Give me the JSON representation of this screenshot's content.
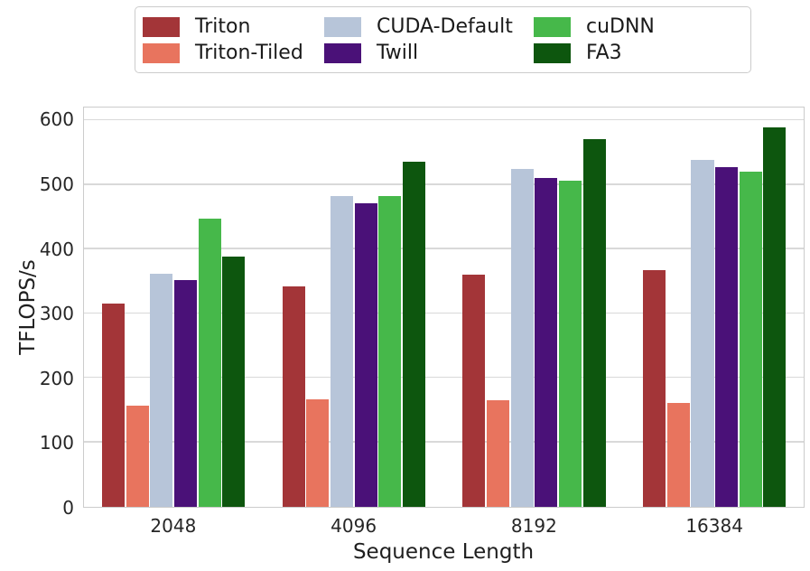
{
  "chart_data": {
    "type": "bar",
    "title": "",
    "xlabel": "Sequence Length",
    "ylabel": "TFLOPS/s",
    "categories": [
      "2048",
      "4096",
      "8192",
      "16384"
    ],
    "series": [
      {
        "name": "Triton",
        "color": "#a33538",
        "values": [
          315,
          342,
          360,
          368
        ]
      },
      {
        "name": "Triton-Tiled",
        "color": "#e8745e",
        "values": [
          157,
          167,
          166,
          162
        ]
      },
      {
        "name": "CUDA-Default",
        "color": "#b7c5d9",
        "values": [
          362,
          482,
          525,
          538
        ]
      },
      {
        "name": "Twill",
        "color": "#4a1178",
        "values": [
          352,
          471,
          511,
          528
        ]
      },
      {
        "name": "cuDNN",
        "color": "#46b84a",
        "values": [
          447,
          483,
          507,
          521
        ]
      },
      {
        "name": "FA3",
        "color": "#0d560e",
        "values": [
          389,
          536,
          571,
          589
        ]
      }
    ],
    "ylim": [
      0,
      620
    ],
    "yticks": [
      0,
      100,
      200,
      300,
      400,
      500,
      600
    ],
    "grid": true,
    "grid_color": "#d9d9d9",
    "spine_color": "#cccccc",
    "tick_text_color": "#262626",
    "legend_position": "top-center",
    "legend_columns": 3,
    "group_width_fraction": 0.8
  }
}
